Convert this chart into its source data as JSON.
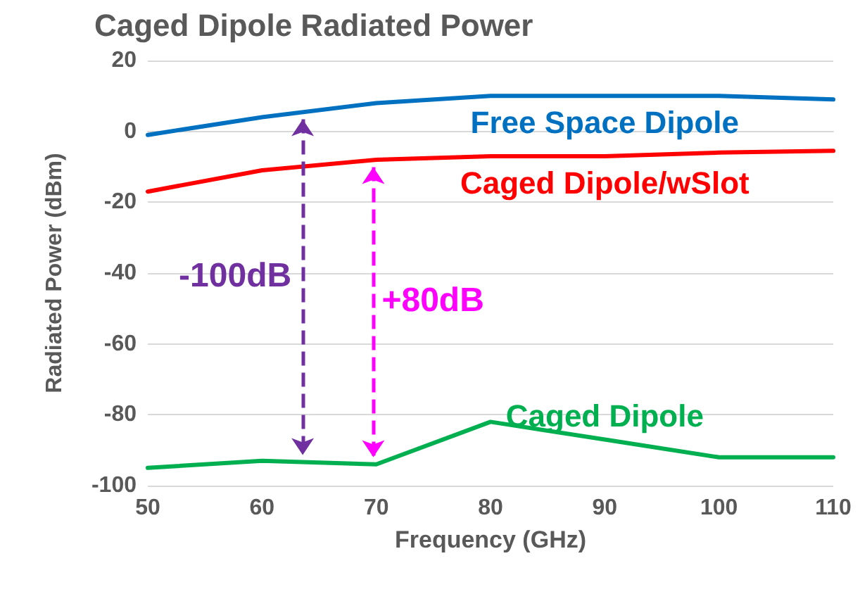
{
  "chart_data": {
    "type": "line",
    "title": "Caged Dipole Radiated Power",
    "xlabel": "Frequency (GHz)",
    "ylabel": "Radiated Power (dBm)",
    "x": [
      50,
      60,
      70,
      80,
      90,
      100,
      110
    ],
    "series": [
      {
        "name": "Free Space Dipole",
        "color": "#0070c0",
        "values": [
          -1,
          4,
          8,
          10,
          10,
          10,
          9
        ]
      },
      {
        "name": "Caged Dipole/wSlot",
        "color": "#ff0000",
        "values": [
          -17,
          -11,
          -8,
          -7,
          -7,
          -6,
          -5.5
        ]
      },
      {
        "name": "Caged Dipole",
        "color": "#00b050",
        "values": [
          -95,
          -93,
          -94,
          -82,
          -87,
          -92,
          -92
        ]
      }
    ],
    "annotations": [
      "-100dB",
      "+80dB"
    ],
    "xlim": [
      50,
      110
    ],
    "xticks": [
      50,
      60,
      70,
      80,
      90,
      100,
      110
    ],
    "ylim": [
      -100,
      20
    ],
    "yticks": [
      -100,
      -80,
      -60,
      -40,
      -20,
      0,
      20
    ],
    "grid": "y",
    "legend": false,
    "marker": "none",
    "line_style": "solid"
  }
}
